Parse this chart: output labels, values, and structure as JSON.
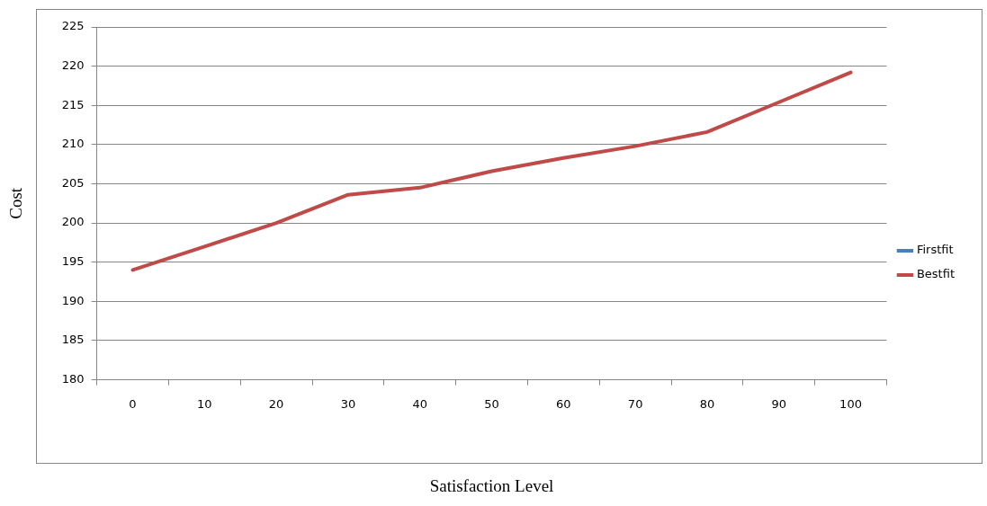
{
  "chart_data": {
    "type": "line",
    "xlabel": "Satisfaction Level",
    "ylabel": "Cost",
    "categories": [
      "0",
      "10",
      "20",
      "30",
      "40",
      "50",
      "60",
      "70",
      "80",
      "90",
      "100"
    ],
    "series": [
      {
        "name": "Firstfit",
        "color": "#4a7ebb",
        "values": [
          null,
          null,
          null,
          null,
          null,
          null,
          null,
          null,
          null,
          null,
          null
        ]
      },
      {
        "name": "Bestfit",
        "color": "#be4b48",
        "values": [
          194,
          197,
          200,
          203.6,
          204.5,
          206.6,
          208.3,
          209.8,
          211.6,
          215.4,
          219.2
        ]
      }
    ],
    "ylim": [
      180,
      225
    ],
    "yticks": [
      180,
      185,
      190,
      195,
      200,
      205,
      210,
      215,
      220,
      225
    ],
    "grid": "y",
    "legend": "right",
    "marker": "none",
    "line_style": "solid"
  }
}
